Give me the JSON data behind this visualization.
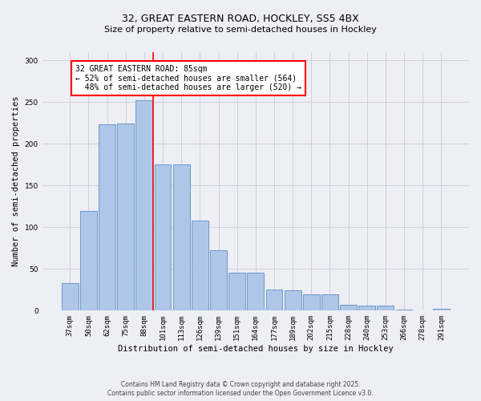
{
  "title_line1": "32, GREAT EASTERN ROAD, HOCKLEY, SS5 4BX",
  "title_line2": "Size of property relative to semi-detached houses in Hockley",
  "xlabel": "Distribution of semi-detached houses by size in Hockley",
  "ylabel": "Number of semi-detached properties",
  "categories": [
    "37sqm",
    "50sqm",
    "62sqm",
    "75sqm",
    "88sqm",
    "101sqm",
    "113sqm",
    "126sqm",
    "139sqm",
    "151sqm",
    "164sqm",
    "177sqm",
    "189sqm",
    "202sqm",
    "215sqm",
    "228sqm",
    "240sqm",
    "253sqm",
    "266sqm",
    "278sqm",
    "291sqm"
  ],
  "values": [
    33,
    120,
    223,
    224,
    252,
    175,
    175,
    108,
    72,
    46,
    46,
    25,
    24,
    20,
    20,
    7,
    6,
    6,
    1,
    0,
    2
  ],
  "bar_color": "#aec6e8",
  "bar_edge_color": "#5b8ec4",
  "grid_color": "#d0d0e0",
  "background_color": "#eeeef5",
  "property_label": "32 GREAT EASTERN ROAD: 85sqm",
  "pct_smaller": 52,
  "n_smaller": 564,
  "pct_larger": 48,
  "n_larger": 520,
  "red_line_bin": 4,
  "footer_line1": "Contains HM Land Registry data © Crown copyright and database right 2025.",
  "footer_line2": "Contains public sector information licensed under the Open Government Licence v3.0.",
  "ylim": [
    0,
    310
  ],
  "title1_fontsize": 9,
  "title2_fontsize": 8,
  "tick_fontsize": 6.5,
  "ylabel_fontsize": 7.5,
  "xlabel_fontsize": 7.5,
  "annot_fontsize": 7,
  "footer_fontsize": 5.5
}
